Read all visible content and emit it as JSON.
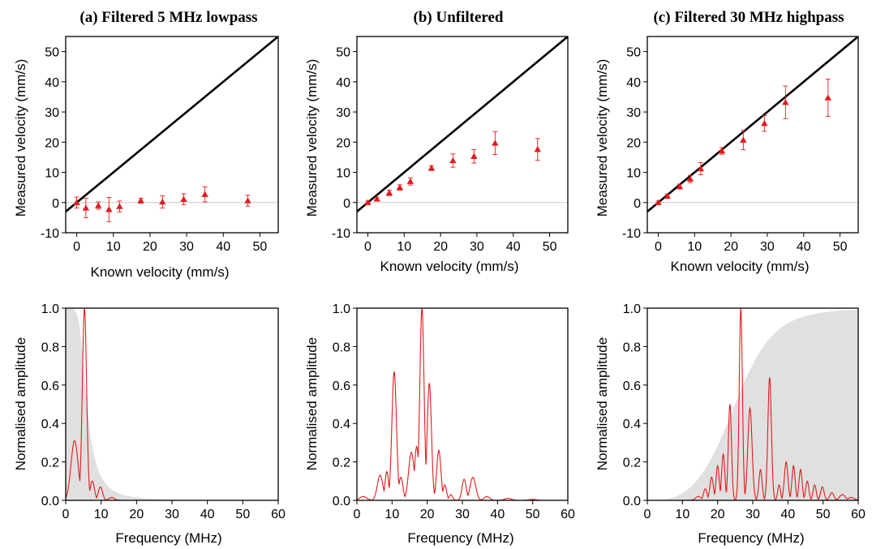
{
  "chart_data": [
    {
      "type": "scatter",
      "panel": "a-top",
      "title": "(a) Filtered 5 MHz lowpass",
      "xlabel": "Known velocity (mm/s)",
      "ylabel": "Measured velocity (mm/s)",
      "xlim": [
        -3,
        55
      ],
      "ylim": [
        -10,
        55
      ],
      "xticks": [
        "0",
        "10",
        "20",
        "30",
        "40",
        "50"
      ],
      "yticks": [
        "-10",
        "0",
        "10",
        "20",
        "30",
        "40",
        "50"
      ],
      "identity_line": true,
      "zero_line": true,
      "colors": {
        "points": "#e31a1c",
        "identity": "#000000",
        "zero": "#cccccc"
      },
      "series": [
        {
          "x": [
            0,
            2.5,
            5.9,
            8.8,
            11.7,
            17.5,
            23.4,
            29.2,
            35.0,
            46.7
          ],
          "y": [
            0.0,
            -1.8,
            -1.0,
            -2.3,
            -1.3,
            0.6,
            0.2,
            1.1,
            2.7,
            0.6
          ],
          "err": [
            1.8,
            3.2,
            1.2,
            4.0,
            1.8,
            0.8,
            2.0,
            1.8,
            2.5,
            1.8
          ]
        }
      ]
    },
    {
      "type": "scatter",
      "panel": "b-top",
      "title": "(b) Unfiltered",
      "xlabel": "Known velocity (mm/s)",
      "ylabel": "Measured velocity (mm/s)",
      "xlim": [
        -3,
        55
      ],
      "ylim": [
        -10,
        55
      ],
      "xticks": [
        "0",
        "10",
        "20",
        "30",
        "40",
        "50"
      ],
      "yticks": [
        "-10",
        "0",
        "10",
        "20",
        "30",
        "40",
        "50"
      ],
      "identity_line": true,
      "zero_line": true,
      "colors": {
        "points": "#e31a1c",
        "identity": "#000000",
        "zero": "#cccccc"
      },
      "series": [
        {
          "x": [
            0,
            2.5,
            5.9,
            8.8,
            11.7,
            17.5,
            23.4,
            29.2,
            35.0,
            46.7
          ],
          "y": [
            0.0,
            1.2,
            3.2,
            5.0,
            7.0,
            11.4,
            13.9,
            15.3,
            19.7,
            17.6
          ],
          "err": [
            0.5,
            0.6,
            0.9,
            0.9,
            1.2,
            0.8,
            2.2,
            2.2,
            3.8,
            3.6
          ]
        }
      ]
    },
    {
      "type": "scatter",
      "panel": "c-top",
      "title": "(c) Filtered 30 MHz highpass",
      "xlabel": "Known velocity (mm/s)",
      "ylabel": "Measured velocity (mm/s)",
      "xlim": [
        -3,
        55
      ],
      "ylim": [
        -10,
        55
      ],
      "xticks": [
        "0",
        "10",
        "20",
        "30",
        "40",
        "50"
      ],
      "yticks": [
        "-10",
        "0",
        "10",
        "20",
        "30",
        "40",
        "50"
      ],
      "identity_line": true,
      "zero_line": true,
      "colors": {
        "points": "#e31a1c",
        "identity": "#000000",
        "zero": "#cccccc"
      },
      "series": [
        {
          "x": [
            0,
            2.5,
            5.9,
            8.8,
            11.7,
            17.5,
            23.4,
            29.2,
            35.0,
            46.7
          ],
          "y": [
            0.0,
            2.1,
            5.3,
            7.8,
            11.2,
            17.1,
            20.7,
            26.2,
            33.2,
            34.7
          ],
          "err": [
            0.5,
            0.7,
            0.8,
            1.2,
            2.0,
            1.1,
            3.2,
            2.6,
            5.4,
            6.2
          ]
        }
      ]
    },
    {
      "type": "line",
      "panel": "a-bottom",
      "xlabel": "Frequency (MHz)",
      "ylabel": "Normalised amplitude",
      "xlim": [
        0,
        60
      ],
      "ylim": [
        0,
        1
      ],
      "xticks": [
        "0",
        "10",
        "20",
        "30",
        "40",
        "50",
        "60"
      ],
      "yticks": [
        "0.0",
        "0.2",
        "0.4",
        "0.6",
        "0.8",
        "1.0"
      ],
      "filter_band": "lowpass",
      "filter_cutoff_mhz": 5,
      "colors": {
        "spectrum": "#e31a1c",
        "filter": "#e0e0e0"
      },
      "series": [
        {
          "peaks": [
            {
              "f": 2.5,
              "a": 0.31,
              "w": 1.0
            },
            {
              "f": 5.3,
              "a": 1.0,
              "w": 0.6
            },
            {
              "f": 7.5,
              "a": 0.1,
              "w": 0.6
            },
            {
              "f": 9.8,
              "a": 0.07,
              "w": 0.6
            },
            {
              "f": 13.0,
              "a": 0.015,
              "w": 0.8
            }
          ]
        }
      ]
    },
    {
      "type": "line",
      "panel": "b-bottom",
      "xlabel": "Frequency (MHz)",
      "ylabel": "Normalised amplitude",
      "xlim": [
        0,
        60
      ],
      "ylim": [
        0,
        1
      ],
      "xticks": [
        "0",
        "10",
        "20",
        "30",
        "40",
        "50",
        "60"
      ],
      "yticks": [
        "0.0",
        "0.2",
        "0.4",
        "0.6",
        "0.8",
        "1.0"
      ],
      "colors": {
        "spectrum": "#e31a1c"
      },
      "series": [
        {
          "peaks": [
            {
              "f": 1.8,
              "a": 0.02,
              "w": 1.0
            },
            {
              "f": 6.6,
              "a": 0.13,
              "w": 0.8
            },
            {
              "f": 8.5,
              "a": 0.15,
              "w": 0.5
            },
            {
              "f": 10.6,
              "a": 0.67,
              "w": 0.65
            },
            {
              "f": 12.5,
              "a": 0.12,
              "w": 0.6
            },
            {
              "f": 15.5,
              "a": 0.25,
              "w": 0.8
            },
            {
              "f": 17.0,
              "a": 0.28,
              "w": 0.6
            },
            {
              "f": 18.5,
              "a": 1.0,
              "w": 0.6
            },
            {
              "f": 20.6,
              "a": 0.61,
              "w": 0.6
            },
            {
              "f": 23.3,
              "a": 0.26,
              "w": 0.6
            },
            {
              "f": 25.0,
              "a": 0.08,
              "w": 0.5
            },
            {
              "f": 26.7,
              "a": 0.03,
              "w": 0.5
            },
            {
              "f": 30.5,
              "a": 0.11,
              "w": 0.6
            },
            {
              "f": 33.0,
              "a": 0.12,
              "w": 0.8
            },
            {
              "f": 37.0,
              "a": 0.02,
              "w": 0.8
            },
            {
              "f": 43.0,
              "a": 0.01,
              "w": 1.0
            },
            {
              "f": 50.0,
              "a": 0.005,
              "w": 1.0
            }
          ]
        }
      ]
    },
    {
      "type": "line",
      "panel": "c-bottom",
      "xlabel": "Frequency (MHz)",
      "ylabel": "Normalised amplitude",
      "xlim": [
        0,
        60
      ],
      "ylim": [
        0,
        1
      ],
      "xticks": [
        "0",
        "10",
        "20",
        "30",
        "40",
        "50",
        "60"
      ],
      "yticks": [
        "0.0",
        "0.2",
        "0.4",
        "0.6",
        "0.8",
        "1.0"
      ],
      "filter_band": "highpass",
      "filter_cutoff_mhz": 30,
      "colors": {
        "spectrum": "#e31a1c",
        "filter": "#e0e0e0"
      },
      "series": [
        {
          "peaks": [
            {
              "f": 14.5,
              "a": 0.02,
              "w": 0.8
            },
            {
              "f": 16.5,
              "a": 0.06,
              "w": 0.5
            },
            {
              "f": 18.3,
              "a": 0.12,
              "w": 0.5
            },
            {
              "f": 20.0,
              "a": 0.18,
              "w": 0.45
            },
            {
              "f": 21.6,
              "a": 0.24,
              "w": 0.45
            },
            {
              "f": 23.5,
              "a": 0.5,
              "w": 0.45
            },
            {
              "f": 26.6,
              "a": 1.0,
              "w": 0.45
            },
            {
              "f": 29.2,
              "a": 0.48,
              "w": 0.6
            },
            {
              "f": 32.2,
              "a": 0.16,
              "w": 0.45
            },
            {
              "f": 34.8,
              "a": 0.64,
              "w": 0.5
            },
            {
              "f": 37.5,
              "a": 0.08,
              "w": 0.4
            },
            {
              "f": 39.5,
              "a": 0.2,
              "w": 0.5
            },
            {
              "f": 41.6,
              "a": 0.18,
              "w": 0.45
            },
            {
              "f": 43.6,
              "a": 0.16,
              "w": 0.45
            },
            {
              "f": 45.5,
              "a": 0.1,
              "w": 0.45
            },
            {
              "f": 47.6,
              "a": 0.08,
              "w": 0.45
            },
            {
              "f": 49.8,
              "a": 0.07,
              "w": 0.5
            },
            {
              "f": 52.5,
              "a": 0.04,
              "w": 0.6
            },
            {
              "f": 55.5,
              "a": 0.03,
              "w": 0.8
            },
            {
              "f": 58.0,
              "a": 0.015,
              "w": 0.9
            }
          ]
        }
      ]
    }
  ]
}
